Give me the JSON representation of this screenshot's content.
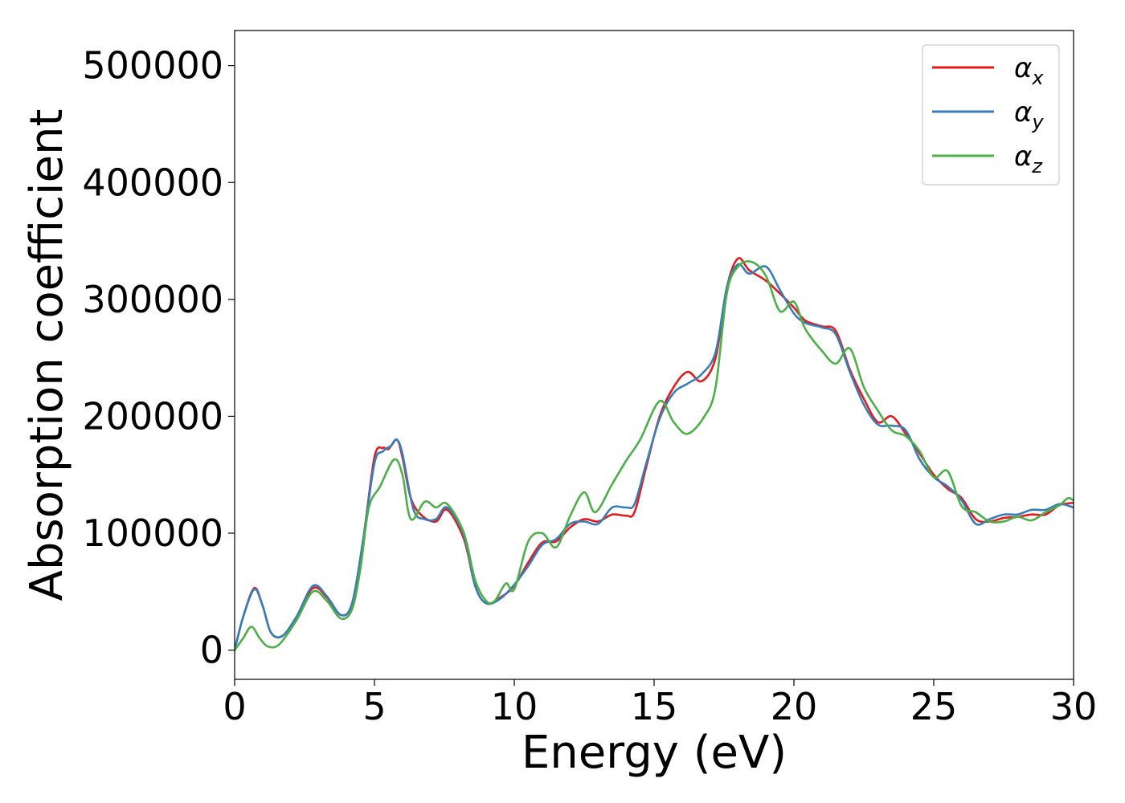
{
  "chart_data": {
    "type": "line",
    "title": "",
    "xlabel": "Energy (eV)",
    "ylabel": "Absorption coefficient",
    "xlim": [
      0,
      30
    ],
    "ylim": [
      -25000,
      530000
    ],
    "xticks": [
      0,
      5,
      10,
      15,
      20,
      25,
      30
    ],
    "xtick_labels": [
      "0",
      "5",
      "10",
      "15",
      "20",
      "25",
      "30"
    ],
    "yticks": [
      0,
      100000,
      200000,
      300000,
      400000,
      500000
    ],
    "ytick_labels": [
      "0",
      "100000",
      "200000",
      "300000",
      "400000",
      "500000"
    ],
    "grid": false,
    "legend_position": "top-right",
    "series": [
      {
        "name": "αx",
        "label_base": "α",
        "label_sub": "x",
        "color": "#e41a1c",
        "points": [
          [
            0,
            0
          ],
          [
            0.3,
            28000
          ],
          [
            0.7,
            53000
          ],
          [
            1.0,
            38000
          ],
          [
            1.3,
            15000
          ],
          [
            1.7,
            12000
          ],
          [
            2.2,
            28000
          ],
          [
            2.8,
            53000
          ],
          [
            3.3,
            45000
          ],
          [
            3.8,
            30000
          ],
          [
            4.2,
            40000
          ],
          [
            4.6,
            95000
          ],
          [
            5.0,
            165000
          ],
          [
            5.3,
            173000
          ],
          [
            5.5,
            172000
          ],
          [
            5.8,
            180000
          ],
          [
            6.0,
            165000
          ],
          [
            6.3,
            130000
          ],
          [
            6.7,
            115000
          ],
          [
            7.2,
            110000
          ],
          [
            7.6,
            120000
          ],
          [
            8.2,
            95000
          ],
          [
            8.6,
            55000
          ],
          [
            9.0,
            40000
          ],
          [
            9.5,
            45000
          ],
          [
            10.0,
            55000
          ],
          [
            10.5,
            75000
          ],
          [
            11.0,
            92000
          ],
          [
            11.5,
            93000
          ],
          [
            12.0,
            105000
          ],
          [
            12.5,
            112000
          ],
          [
            13.0,
            110000
          ],
          [
            13.5,
            116000
          ],
          [
            14.0,
            115000
          ],
          [
            14.3,
            118000
          ],
          [
            14.7,
            155000
          ],
          [
            15.2,
            200000
          ],
          [
            15.7,
            225000
          ],
          [
            16.2,
            238000
          ],
          [
            16.7,
            230000
          ],
          [
            17.2,
            250000
          ],
          [
            17.6,
            310000
          ],
          [
            18.0,
            335000
          ],
          [
            18.4,
            325000
          ],
          [
            19.0,
            316000
          ],
          [
            19.5,
            305000
          ],
          [
            20.0,
            293000
          ],
          [
            20.4,
            282000
          ],
          [
            21.0,
            277000
          ],
          [
            21.5,
            273000
          ],
          [
            22.0,
            240000
          ],
          [
            22.5,
            215000
          ],
          [
            23.0,
            195000
          ],
          [
            23.5,
            200000
          ],
          [
            24.0,
            185000
          ],
          [
            24.5,
            168000
          ],
          [
            25.0,
            150000
          ],
          [
            25.5,
            138000
          ],
          [
            26.0,
            130000
          ],
          [
            26.5,
            112000
          ],
          [
            27.0,
            110000
          ],
          [
            27.5,
            113000
          ],
          [
            28.0,
            114000
          ],
          [
            28.5,
            116000
          ],
          [
            29.0,
            116000
          ],
          [
            29.5,
            124000
          ],
          [
            30,
            126000
          ]
        ]
      },
      {
        "name": "αy",
        "label_base": "α",
        "label_sub": "y",
        "color": "#377eb8",
        "points": [
          [
            0,
            0
          ],
          [
            0.3,
            28000
          ],
          [
            0.7,
            52000
          ],
          [
            1.0,
            38000
          ],
          [
            1.3,
            15000
          ],
          [
            1.7,
            12000
          ],
          [
            2.2,
            28000
          ],
          [
            2.8,
            55000
          ],
          [
            3.3,
            46000
          ],
          [
            3.8,
            30000
          ],
          [
            4.2,
            40000
          ],
          [
            4.6,
            95000
          ],
          [
            5.0,
            160000
          ],
          [
            5.3,
            170000
          ],
          [
            5.6,
            175000
          ],
          [
            5.8,
            180000
          ],
          [
            6.0,
            168000
          ],
          [
            6.4,
            120000
          ],
          [
            6.8,
            112000
          ],
          [
            7.2,
            112000
          ],
          [
            7.6,
            122000
          ],
          [
            8.2,
            98000
          ],
          [
            8.6,
            55000
          ],
          [
            9.0,
            40000
          ],
          [
            9.5,
            44000
          ],
          [
            10.0,
            56000
          ],
          [
            10.5,
            72000
          ],
          [
            11.0,
            90000
          ],
          [
            11.5,
            95000
          ],
          [
            12.0,
            108000
          ],
          [
            12.5,
            110000
          ],
          [
            13.0,
            108000
          ],
          [
            13.5,
            122000
          ],
          [
            14.0,
            122000
          ],
          [
            14.3,
            125000
          ],
          [
            14.7,
            158000
          ],
          [
            15.2,
            198000
          ],
          [
            15.7,
            220000
          ],
          [
            16.2,
            228000
          ],
          [
            16.7,
            236000
          ],
          [
            17.2,
            255000
          ],
          [
            17.6,
            310000
          ],
          [
            18.0,
            330000
          ],
          [
            18.4,
            322000
          ],
          [
            19.0,
            328000
          ],
          [
            19.5,
            308000
          ],
          [
            20.0,
            288000
          ],
          [
            20.4,
            280000
          ],
          [
            21.0,
            276000
          ],
          [
            21.5,
            270000
          ],
          [
            22.0,
            238000
          ],
          [
            22.5,
            210000
          ],
          [
            23.0,
            193000
          ],
          [
            23.5,
            192000
          ],
          [
            24.0,
            188000
          ],
          [
            24.5,
            163000
          ],
          [
            25.0,
            148000
          ],
          [
            25.5,
            140000
          ],
          [
            26.0,
            128000
          ],
          [
            26.5,
            108000
          ],
          [
            27.0,
            112000
          ],
          [
            27.5,
            116000
          ],
          [
            28.0,
            116000
          ],
          [
            28.5,
            120000
          ],
          [
            29.0,
            120000
          ],
          [
            29.5,
            125000
          ],
          [
            30,
            122000
          ]
        ]
      },
      {
        "name": "αz",
        "label_base": "α",
        "label_sub": "z",
        "color": "#4daf4a",
        "points": [
          [
            0,
            0
          ],
          [
            0.3,
            10000
          ],
          [
            0.6,
            20000
          ],
          [
            0.9,
            10000
          ],
          [
            1.2,
            3000
          ],
          [
            1.6,
            5000
          ],
          [
            2.2,
            25000
          ],
          [
            2.8,
            50000
          ],
          [
            3.3,
            42000
          ],
          [
            3.8,
            27000
          ],
          [
            4.2,
            35000
          ],
          [
            4.5,
            70000
          ],
          [
            4.8,
            122000
          ],
          [
            5.2,
            140000
          ],
          [
            5.7,
            163000
          ],
          [
            6.0,
            150000
          ],
          [
            6.3,
            112000
          ],
          [
            6.8,
            127000
          ],
          [
            7.2,
            122000
          ],
          [
            7.6,
            125000
          ],
          [
            8.2,
            100000
          ],
          [
            8.6,
            60000
          ],
          [
            9.0,
            42000
          ],
          [
            9.3,
            42000
          ],
          [
            9.7,
            57000
          ],
          [
            10.0,
            52000
          ],
          [
            10.5,
            93000
          ],
          [
            11.0,
            100000
          ],
          [
            11.5,
            88000
          ],
          [
            12.0,
            115000
          ],
          [
            12.5,
            135000
          ],
          [
            12.9,
            118000
          ],
          [
            13.5,
            142000
          ],
          [
            14.0,
            162000
          ],
          [
            14.5,
            180000
          ],
          [
            15.2,
            213000
          ],
          [
            15.7,
            195000
          ],
          [
            16.2,
            185000
          ],
          [
            16.8,
            200000
          ],
          [
            17.2,
            225000
          ],
          [
            17.6,
            305000
          ],
          [
            18.0,
            328000
          ],
          [
            18.5,
            332000
          ],
          [
            19.0,
            320000
          ],
          [
            19.5,
            290000
          ],
          [
            20.0,
            298000
          ],
          [
            20.4,
            275000
          ],
          [
            21.0,
            256000
          ],
          [
            21.5,
            245000
          ],
          [
            22.0,
            258000
          ],
          [
            22.5,
            225000
          ],
          [
            23.0,
            205000
          ],
          [
            23.5,
            188000
          ],
          [
            24.0,
            183000
          ],
          [
            24.5,
            170000
          ],
          [
            25.0,
            148000
          ],
          [
            25.5,
            153000
          ],
          [
            26.0,
            123000
          ],
          [
            26.5,
            118000
          ],
          [
            27.0,
            110000
          ],
          [
            27.5,
            110000
          ],
          [
            28.0,
            114000
          ],
          [
            28.5,
            111000
          ],
          [
            29.0,
            118000
          ],
          [
            29.5,
            124000
          ],
          [
            29.8,
            130000
          ],
          [
            30,
            128000
          ]
        ]
      }
    ]
  }
}
